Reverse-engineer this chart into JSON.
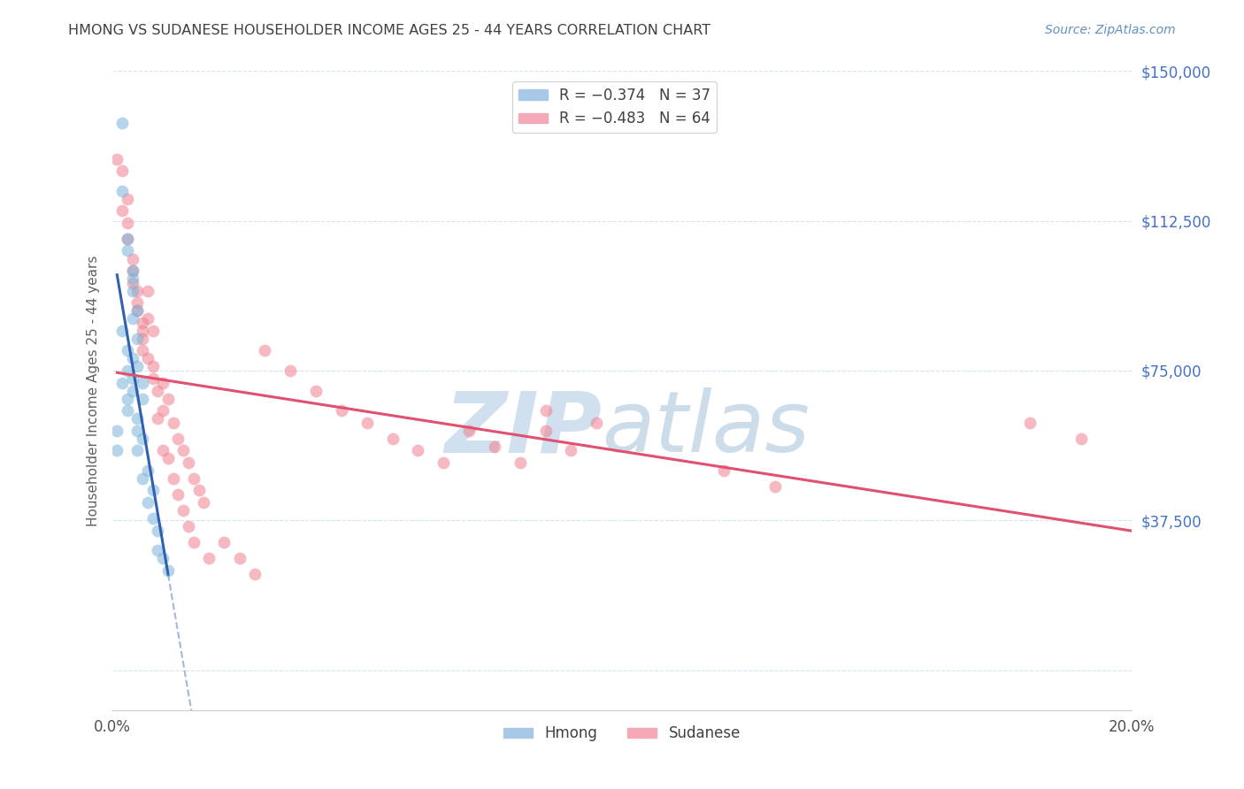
{
  "title": "HMONG VS SUDANESE HOUSEHOLDER INCOME AGES 25 - 44 YEARS CORRELATION CHART",
  "source": "Source: ZipAtlas.com",
  "ylabel": "Householder Income Ages 25 - 44 years",
  "xlim": [
    0.0,
    0.2
  ],
  "ylim": [
    -10000,
    150000
  ],
  "yticks": [
    0,
    37500,
    75000,
    112500,
    150000
  ],
  "ytick_labels": [
    "",
    "$37,500",
    "$75,000",
    "$112,500",
    "$150,000"
  ],
  "xticks": [
    0.0,
    0.04,
    0.08,
    0.12,
    0.16,
    0.2
  ],
  "xtick_labels": [
    "0.0%",
    "",
    "",
    "",
    "",
    "20.0%"
  ],
  "hmong_color": "#7ab3d9",
  "sudanese_color": "#f08090",
  "hmong_line_color": "#3060b0",
  "sudanese_line_color": "#e05070",
  "grid_color": "#d8e4f0",
  "background_color": "#ffffff",
  "title_color": "#404040",
  "tick_color_right": "#4472c4",
  "watermark_color": "#ccdded",
  "hmong_x": [
    0.001,
    0.001,
    0.002,
    0.002,
    0.002,
    0.002,
    0.003,
    0.003,
    0.003,
    0.003,
    0.003,
    0.003,
    0.004,
    0.004,
    0.004,
    0.004,
    0.004,
    0.004,
    0.004,
    0.005,
    0.005,
    0.005,
    0.005,
    0.005,
    0.005,
    0.006,
    0.006,
    0.006,
    0.006,
    0.007,
    0.007,
    0.008,
    0.008,
    0.009,
    0.009,
    0.01,
    0.011
  ],
  "hmong_y": [
    55000,
    60000,
    137000,
    120000,
    85000,
    72000,
    108000,
    105000,
    80000,
    75000,
    68000,
    65000,
    100000,
    98000,
    95000,
    88000,
    78000,
    73000,
    70000,
    90000,
    83000,
    76000,
    63000,
    60000,
    55000,
    72000,
    68000,
    58000,
    48000,
    50000,
    42000,
    45000,
    38000,
    35000,
    30000,
    28000,
    25000
  ],
  "sudanese_x": [
    0.001,
    0.002,
    0.002,
    0.003,
    0.003,
    0.003,
    0.004,
    0.004,
    0.004,
    0.005,
    0.005,
    0.005,
    0.006,
    0.006,
    0.006,
    0.006,
    0.007,
    0.007,
    0.007,
    0.008,
    0.008,
    0.008,
    0.009,
    0.009,
    0.01,
    0.01,
    0.01,
    0.011,
    0.011,
    0.012,
    0.012,
    0.013,
    0.013,
    0.014,
    0.014,
    0.015,
    0.015,
    0.016,
    0.016,
    0.017,
    0.018,
    0.019,
    0.03,
    0.035,
    0.04,
    0.045,
    0.05,
    0.055,
    0.06,
    0.065,
    0.07,
    0.075,
    0.08,
    0.085,
    0.085,
    0.09,
    0.095,
    0.12,
    0.13,
    0.18,
    0.19,
    0.022,
    0.025,
    0.028
  ],
  "sudanese_y": [
    128000,
    125000,
    115000,
    118000,
    112000,
    108000,
    103000,
    100000,
    97000,
    95000,
    92000,
    90000,
    87000,
    85000,
    83000,
    80000,
    95000,
    88000,
    78000,
    85000,
    76000,
    73000,
    70000,
    63000,
    72000,
    65000,
    55000,
    68000,
    53000,
    62000,
    48000,
    58000,
    44000,
    55000,
    40000,
    52000,
    36000,
    48000,
    32000,
    45000,
    42000,
    28000,
    80000,
    75000,
    70000,
    65000,
    62000,
    58000,
    55000,
    52000,
    60000,
    56000,
    52000,
    65000,
    60000,
    55000,
    62000,
    50000,
    46000,
    62000,
    58000,
    32000,
    28000,
    24000
  ]
}
